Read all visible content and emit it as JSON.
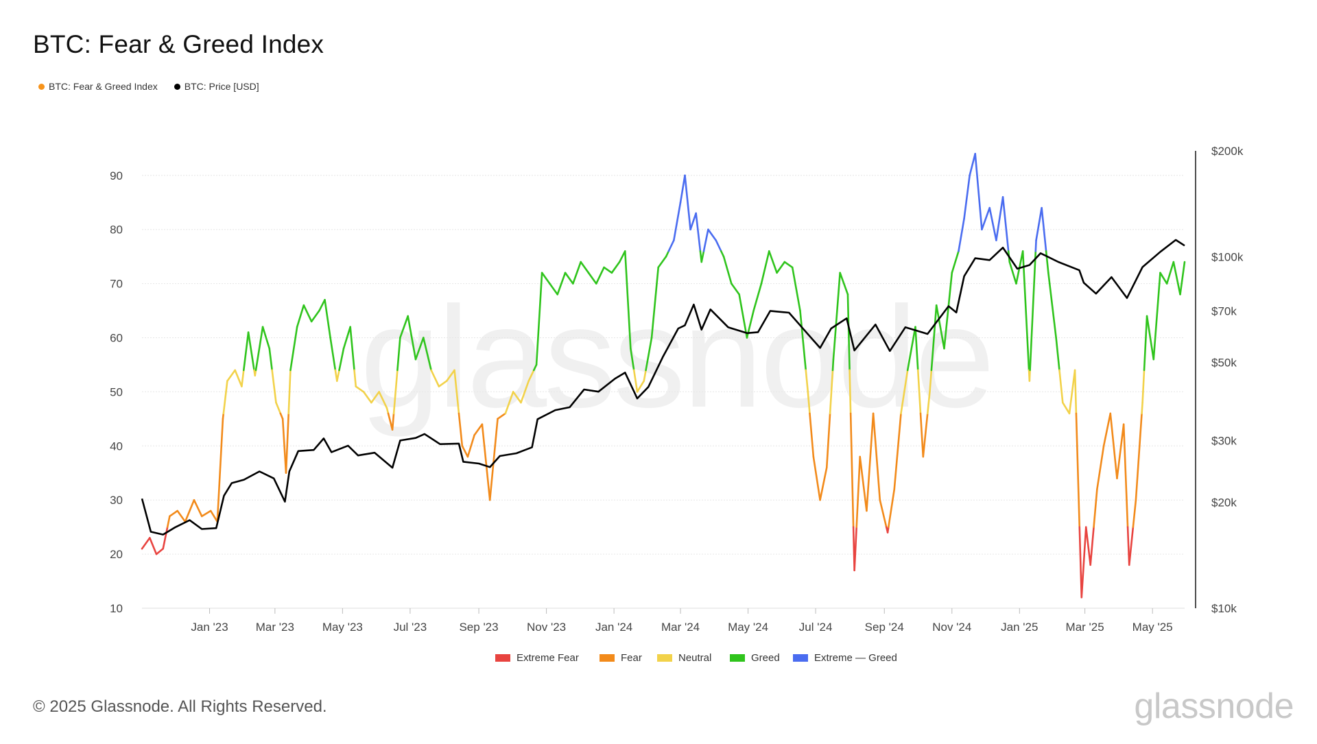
{
  "title": "BTC: Fear & Greed Index",
  "watermark": "glassnode",
  "top_legend": [
    {
      "label": "BTC: Fear & Greed Index",
      "color": "#f7931a"
    },
    {
      "label": "BTC: Price [USD]",
      "color": "#000000"
    }
  ],
  "footer": "© 2025 Glassnode. All Rights Reserved.",
  "brand": "glassnode",
  "colors": {
    "extreme_fear": "#e8433f",
    "fear": "#f28a1a",
    "neutral": "#f2d24a",
    "greed": "#2fc41c",
    "extreme_greed": "#4a6cf0",
    "price": "#000000"
  },
  "chart_data": {
    "type": "line",
    "x_type": "date",
    "xlim": [
      "2022-11-01",
      "2025-05-30"
    ],
    "x_ticks": [
      {
        "date": "2023-01-01",
        "label": "Jan '23"
      },
      {
        "date": "2023-03-01",
        "label": "Mar '23"
      },
      {
        "date": "2023-05-01",
        "label": "May '23"
      },
      {
        "date": "2023-07-01",
        "label": "Jul '23"
      },
      {
        "date": "2023-09-01",
        "label": "Sep '23"
      },
      {
        "date": "2023-11-01",
        "label": "Nov '23"
      },
      {
        "date": "2024-01-01",
        "label": "Jan '24"
      },
      {
        "date": "2024-03-01",
        "label": "Mar '24"
      },
      {
        "date": "2024-05-01",
        "label": "May '24"
      },
      {
        "date": "2024-07-01",
        "label": "Jul '24"
      },
      {
        "date": "2024-09-01",
        "label": "Sep '24"
      },
      {
        "date": "2024-11-01",
        "label": "Nov '24"
      },
      {
        "date": "2025-01-01",
        "label": "Jan '25"
      },
      {
        "date": "2025-03-01",
        "label": "Mar '25"
      },
      {
        "date": "2025-05-01",
        "label": "May '25"
      }
    ],
    "y_left": {
      "ticks": [
        10,
        20,
        30,
        40,
        50,
        60,
        70,
        80,
        90
      ],
      "ylim": [
        10,
        92
      ]
    },
    "y_right": {
      "scale": "log",
      "ylim": [
        10000,
        200000
      ],
      "ticks": [
        {
          "value": 10000,
          "label": "$10k"
        },
        {
          "value": 20000,
          "label": "$20k"
        },
        {
          "value": 30000,
          "label": "$30k"
        },
        {
          "value": 50000,
          "label": "$50k"
        },
        {
          "value": 70000,
          "label": "$70k"
        },
        {
          "value": 100000,
          "label": "$100k"
        },
        {
          "value": 200000,
          "label": "$200k"
        }
      ]
    },
    "zones": [
      {
        "name": "Extreme Fear",
        "from": 0,
        "to": 25,
        "color": "#e8433f"
      },
      {
        "name": "Fear",
        "from": 25,
        "to": 46,
        "color": "#f28a1a"
      },
      {
        "name": "Neutral",
        "from": 46,
        "to": 54,
        "color": "#f2d24a"
      },
      {
        "name": "Greed",
        "from": 54,
        "to": 76,
        "color": "#2fc41c"
      },
      {
        "name": "Extreme — Greed",
        "from": 76,
        "to": 100,
        "color": "#4a6cf0"
      }
    ],
    "grid": true,
    "series": [
      {
        "name": "BTC: Fear & Greed Index",
        "axis": "left",
        "points": [
          [
            "2022-11-01",
            21
          ],
          [
            "2022-11-08",
            23
          ],
          [
            "2022-11-14",
            20
          ],
          [
            "2022-11-20",
            21
          ],
          [
            "2022-11-26",
            27
          ],
          [
            "2022-12-03",
            28
          ],
          [
            "2022-12-10",
            26
          ],
          [
            "2022-12-18",
            30
          ],
          [
            "2022-12-25",
            27
          ],
          [
            "2023-01-02",
            28
          ],
          [
            "2023-01-08",
            26
          ],
          [
            "2023-01-13",
            45
          ],
          [
            "2023-01-17",
            52
          ],
          [
            "2023-01-24",
            54
          ],
          [
            "2023-01-30",
            51
          ],
          [
            "2023-02-05",
            61
          ],
          [
            "2023-02-11",
            53
          ],
          [
            "2023-02-18",
            62
          ],
          [
            "2023-02-24",
            58
          ],
          [
            "2023-03-02",
            48
          ],
          [
            "2023-03-08",
            45
          ],
          [
            "2023-03-11",
            35
          ],
          [
            "2023-03-15",
            54
          ],
          [
            "2023-03-21",
            62
          ],
          [
            "2023-03-27",
            66
          ],
          [
            "2023-04-03",
            63
          ],
          [
            "2023-04-10",
            65
          ],
          [
            "2023-04-15",
            67
          ],
          [
            "2023-04-20",
            60
          ],
          [
            "2023-04-26",
            52
          ],
          [
            "2023-05-02",
            58
          ],
          [
            "2023-05-08",
            62
          ],
          [
            "2023-05-13",
            51
          ],
          [
            "2023-05-20",
            50
          ],
          [
            "2023-05-27",
            48
          ],
          [
            "2023-06-03",
            50
          ],
          [
            "2023-06-10",
            47
          ],
          [
            "2023-06-15",
            43
          ],
          [
            "2023-06-22",
            60
          ],
          [
            "2023-06-29",
            64
          ],
          [
            "2023-07-06",
            56
          ],
          [
            "2023-07-13",
            60
          ],
          [
            "2023-07-20",
            54
          ],
          [
            "2023-07-27",
            51
          ],
          [
            "2023-08-03",
            52
          ],
          [
            "2023-08-10",
            54
          ],
          [
            "2023-08-17",
            40
          ],
          [
            "2023-08-22",
            38
          ],
          [
            "2023-08-28",
            42
          ],
          [
            "2023-09-04",
            44
          ],
          [
            "2023-09-11",
            30
          ],
          [
            "2023-09-18",
            45
          ],
          [
            "2023-09-25",
            46
          ],
          [
            "2023-10-02",
            50
          ],
          [
            "2023-10-09",
            48
          ],
          [
            "2023-10-16",
            52
          ],
          [
            "2023-10-23",
            55
          ],
          [
            "2023-10-28",
            72
          ],
          [
            "2023-11-04",
            70
          ],
          [
            "2023-11-11",
            68
          ],
          [
            "2023-11-18",
            72
          ],
          [
            "2023-11-25",
            70
          ],
          [
            "2023-12-02",
            74
          ],
          [
            "2023-12-09",
            72
          ],
          [
            "2023-12-16",
            70
          ],
          [
            "2023-12-23",
            73
          ],
          [
            "2023-12-30",
            72
          ],
          [
            "2024-01-06",
            74
          ],
          [
            "2024-01-11",
            76
          ],
          [
            "2024-01-16",
            58
          ],
          [
            "2024-01-22",
            50
          ],
          [
            "2024-01-28",
            52
          ],
          [
            "2024-02-04",
            60
          ],
          [
            "2024-02-10",
            73
          ],
          [
            "2024-02-17",
            75
          ],
          [
            "2024-02-24",
            78
          ],
          [
            "2024-03-01",
            85
          ],
          [
            "2024-03-05",
            90
          ],
          [
            "2024-03-10",
            80
          ],
          [
            "2024-03-15",
            83
          ],
          [
            "2024-03-20",
            74
          ],
          [
            "2024-03-26",
            80
          ],
          [
            "2024-04-02",
            78
          ],
          [
            "2024-04-09",
            75
          ],
          [
            "2024-04-16",
            70
          ],
          [
            "2024-04-23",
            68
          ],
          [
            "2024-04-30",
            60
          ],
          [
            "2024-05-06",
            65
          ],
          [
            "2024-05-13",
            70
          ],
          [
            "2024-05-20",
            76
          ],
          [
            "2024-05-27",
            72
          ],
          [
            "2024-06-03",
            74
          ],
          [
            "2024-06-10",
            73
          ],
          [
            "2024-06-17",
            65
          ],
          [
            "2024-06-24",
            50
          ],
          [
            "2024-06-29",
            38
          ],
          [
            "2024-07-05",
            30
          ],
          [
            "2024-07-11",
            36
          ],
          [
            "2024-07-17",
            56
          ],
          [
            "2024-07-23",
            72
          ],
          [
            "2024-07-30",
            68
          ],
          [
            "2024-08-05",
            17
          ],
          [
            "2024-08-10",
            38
          ],
          [
            "2024-08-16",
            28
          ],
          [
            "2024-08-22",
            46
          ],
          [
            "2024-08-28",
            30
          ],
          [
            "2024-09-04",
            24
          ],
          [
            "2024-09-10",
            32
          ],
          [
            "2024-09-16",
            46
          ],
          [
            "2024-09-22",
            54
          ],
          [
            "2024-09-29",
            62
          ],
          [
            "2024-10-06",
            38
          ],
          [
            "2024-10-12",
            50
          ],
          [
            "2024-10-18",
            66
          ],
          [
            "2024-10-25",
            58
          ],
          [
            "2024-11-01",
            72
          ],
          [
            "2024-11-07",
            76
          ],
          [
            "2024-11-12",
            82
          ],
          [
            "2024-11-17",
            90
          ],
          [
            "2024-11-22",
            94
          ],
          [
            "2024-11-28",
            80
          ],
          [
            "2024-12-05",
            84
          ],
          [
            "2024-12-11",
            78
          ],
          [
            "2024-12-17",
            86
          ],
          [
            "2024-12-23",
            74
          ],
          [
            "2024-12-29",
            70
          ],
          [
            "2025-01-04",
            76
          ],
          [
            "2025-01-10",
            52
          ],
          [
            "2025-01-16",
            78
          ],
          [
            "2025-01-21",
            84
          ],
          [
            "2025-01-27",
            72
          ],
          [
            "2025-02-03",
            60
          ],
          [
            "2025-02-09",
            48
          ],
          [
            "2025-02-15",
            46
          ],
          [
            "2025-02-20",
            54
          ],
          [
            "2025-02-26",
            12
          ],
          [
            "2025-03-02",
            25
          ],
          [
            "2025-03-06",
            18
          ],
          [
            "2025-03-12",
            32
          ],
          [
            "2025-03-18",
            40
          ],
          [
            "2025-03-24",
            46
          ],
          [
            "2025-03-30",
            34
          ],
          [
            "2025-04-05",
            44
          ],
          [
            "2025-04-10",
            18
          ],
          [
            "2025-04-16",
            30
          ],
          [
            "2025-04-22",
            48
          ],
          [
            "2025-04-26",
            64
          ],
          [
            "2025-05-02",
            56
          ],
          [
            "2025-05-08",
            72
          ],
          [
            "2025-05-14",
            70
          ],
          [
            "2025-05-20",
            74
          ],
          [
            "2025-05-26",
            68
          ],
          [
            "2025-05-30",
            74
          ]
        ]
      },
      {
        "name": "BTC: Price [USD]",
        "axis": "right",
        "color": "#000000",
        "points": [
          [
            "2022-11-01",
            20500
          ],
          [
            "2022-11-09",
            16500
          ],
          [
            "2022-11-20",
            16200
          ],
          [
            "2022-12-01",
            17000
          ],
          [
            "2022-12-14",
            17800
          ],
          [
            "2022-12-25",
            16800
          ],
          [
            "2023-01-07",
            16900
          ],
          [
            "2023-01-14",
            20900
          ],
          [
            "2023-01-21",
            22700
          ],
          [
            "2023-02-01",
            23200
          ],
          [
            "2023-02-15",
            24500
          ],
          [
            "2023-02-28",
            23400
          ],
          [
            "2023-03-10",
            20100
          ],
          [
            "2023-03-14",
            24500
          ],
          [
            "2023-03-22",
            28000
          ],
          [
            "2023-04-05",
            28200
          ],
          [
            "2023-04-14",
            30400
          ],
          [
            "2023-04-21",
            27800
          ],
          [
            "2023-05-06",
            29000
          ],
          [
            "2023-05-15",
            27200
          ],
          [
            "2023-05-30",
            27700
          ],
          [
            "2023-06-15",
            25100
          ],
          [
            "2023-06-22",
            30000
          ],
          [
            "2023-07-06",
            30500
          ],
          [
            "2023-07-14",
            31300
          ],
          [
            "2023-07-28",
            29300
          ],
          [
            "2023-08-14",
            29400
          ],
          [
            "2023-08-18",
            26100
          ],
          [
            "2023-09-01",
            25800
          ],
          [
            "2023-09-11",
            25200
          ],
          [
            "2023-09-20",
            27100
          ],
          [
            "2023-10-05",
            27600
          ],
          [
            "2023-10-19",
            28700
          ],
          [
            "2023-10-24",
            34500
          ],
          [
            "2023-11-09",
            36600
          ],
          [
            "2023-11-22",
            37300
          ],
          [
            "2023-12-05",
            41900
          ],
          [
            "2023-12-18",
            41300
          ],
          [
            "2024-01-02",
            45000
          ],
          [
            "2024-01-11",
            46800
          ],
          [
            "2024-01-22",
            39500
          ],
          [
            "2024-02-01",
            42600
          ],
          [
            "2024-02-14",
            51800
          ],
          [
            "2024-02-28",
            62500
          ],
          [
            "2024-03-05",
            63800
          ],
          [
            "2024-03-13",
            73100
          ],
          [
            "2024-03-20",
            62000
          ],
          [
            "2024-03-28",
            70800
          ],
          [
            "2024-04-13",
            63000
          ],
          [
            "2024-04-30",
            60600
          ],
          [
            "2024-05-10",
            61000
          ],
          [
            "2024-05-21",
            70100
          ],
          [
            "2024-06-07",
            69300
          ],
          [
            "2024-06-24",
            60200
          ],
          [
            "2024-07-05",
            55000
          ],
          [
            "2024-07-15",
            62500
          ],
          [
            "2024-07-29",
            66800
          ],
          [
            "2024-08-05",
            54100
          ],
          [
            "2024-08-24",
            64100
          ],
          [
            "2024-09-06",
            53900
          ],
          [
            "2024-09-20",
            63000
          ],
          [
            "2024-10-10",
            60300
          ],
          [
            "2024-10-29",
            72300
          ],
          [
            "2024-11-05",
            69400
          ],
          [
            "2024-11-12",
            88000
          ],
          [
            "2024-11-22",
            99000
          ],
          [
            "2024-12-05",
            97800
          ],
          [
            "2024-12-17",
            106100
          ],
          [
            "2024-12-30",
            92400
          ],
          [
            "2025-01-10",
            94700
          ],
          [
            "2025-01-20",
            102300
          ],
          [
            "2025-02-05",
            96600
          ],
          [
            "2025-02-24",
            91500
          ],
          [
            "2025-02-28",
            84300
          ],
          [
            "2025-03-11",
            78500
          ],
          [
            "2025-03-25",
            87500
          ],
          [
            "2025-04-08",
            76300
          ],
          [
            "2025-04-22",
            93400
          ],
          [
            "2025-05-08",
            103200
          ],
          [
            "2025-05-22",
            111600
          ],
          [
            "2025-05-30",
            107500
          ]
        ]
      }
    ],
    "legend": [
      "Extreme Fear",
      "Fear",
      "Neutral",
      "Greed",
      "Extreme — Greed"
    ]
  }
}
